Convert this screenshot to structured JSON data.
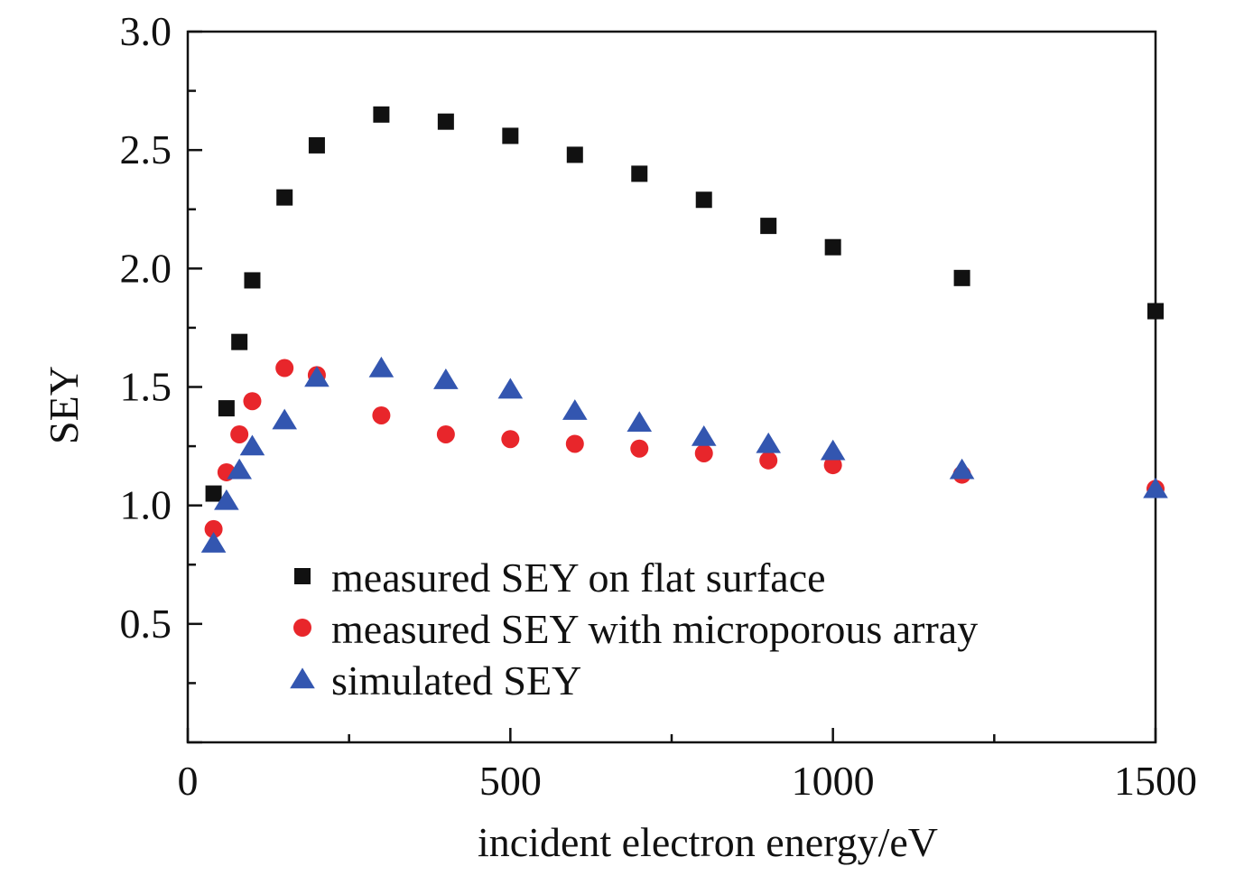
{
  "chart_data": {
    "type": "scatter",
    "title": "",
    "xlabel": "incident electron energy/eV",
    "ylabel": "SEY",
    "xlim": [
      0,
      1500
    ],
    "ylim": [
      0,
      3.0
    ],
    "xticks": [
      0,
      500,
      1000,
      1500
    ],
    "xtick_labels": [
      "0",
      "500",
      "1000",
      "1500"
    ],
    "yticks": [
      0.5,
      1.0,
      1.5,
      2.0,
      2.5,
      3.0
    ],
    "ytick_labels": [
      "0.5",
      "1.0",
      "1.5",
      "2.0",
      "2.5",
      "3.0"
    ],
    "grid": false,
    "legend_position": "bottom-center",
    "series": [
      {
        "name": "measured SEY on flat surface",
        "marker": "square",
        "color": "#111111",
        "x": [
          40,
          60,
          80,
          100,
          150,
          200,
          300,
          400,
          500,
          600,
          700,
          800,
          900,
          1000,
          1200,
          1500
        ],
        "y": [
          1.05,
          1.41,
          1.69,
          1.95,
          2.3,
          2.52,
          2.65,
          2.62,
          2.56,
          2.48,
          2.4,
          2.29,
          2.18,
          2.09,
          1.96,
          1.82
        ]
      },
      {
        "name": "measured SEY with microporous array",
        "marker": "circle",
        "color": "#e8262b",
        "x": [
          40,
          60,
          80,
          100,
          150,
          200,
          300,
          400,
          500,
          600,
          700,
          800,
          900,
          1000,
          1200,
          1500
        ],
        "y": [
          0.9,
          1.14,
          1.3,
          1.44,
          1.58,
          1.55,
          1.38,
          1.3,
          1.28,
          1.26,
          1.24,
          1.22,
          1.19,
          1.17,
          1.13,
          1.07
        ]
      },
      {
        "name": "simulated SEY",
        "marker": "triangle",
        "color": "#3356b0",
        "x": [
          40,
          60,
          80,
          100,
          150,
          200,
          300,
          400,
          500,
          600,
          700,
          800,
          900,
          1000,
          1200,
          1500
        ],
        "y": [
          0.84,
          1.02,
          1.15,
          1.25,
          1.36,
          1.54,
          1.58,
          1.53,
          1.49,
          1.4,
          1.35,
          1.29,
          1.26,
          1.23,
          1.15,
          1.07
        ]
      }
    ]
  }
}
